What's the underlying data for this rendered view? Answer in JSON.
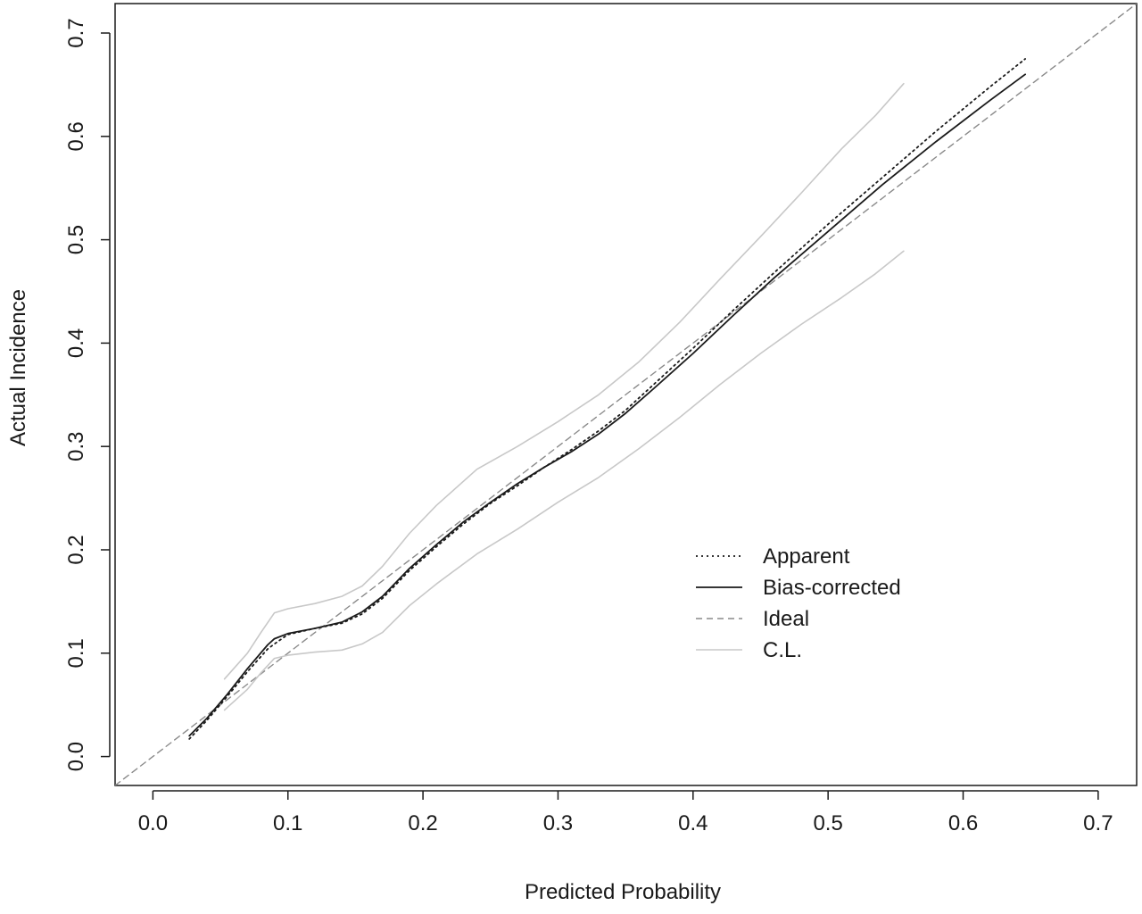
{
  "chart_data": {
    "type": "line",
    "title": "",
    "xlabel": "Predicted Probability",
    "ylabel": "Actual Incidence",
    "xlim": [
      -0.028,
      0.7285
    ],
    "ylim": [
      -0.028,
      0.7285
    ],
    "x_ticks": [
      "0.0",
      "0.1",
      "0.2",
      "0.3",
      "0.4",
      "0.5",
      "0.6",
      "0.7"
    ],
    "y_ticks": [
      "0.0",
      "0.1",
      "0.2",
      "0.3",
      "0.4",
      "0.5",
      "0.6",
      "0.7"
    ],
    "grid": false,
    "legend_position": "center-right",
    "series": [
      {
        "name": "Apparent",
        "style": "dotted",
        "color": "#1a1a1a",
        "points": [
          [
            0.027,
            0.017
          ],
          [
            0.04,
            0.035
          ],
          [
            0.055,
            0.058
          ],
          [
            0.07,
            0.082
          ],
          [
            0.085,
            0.104
          ],
          [
            0.09,
            0.109
          ],
          [
            0.1,
            0.118
          ],
          [
            0.12,
            0.124
          ],
          [
            0.14,
            0.129
          ],
          [
            0.155,
            0.138
          ],
          [
            0.17,
            0.153
          ],
          [
            0.19,
            0.18
          ],
          [
            0.21,
            0.203
          ],
          [
            0.23,
            0.225
          ],
          [
            0.25,
            0.245
          ],
          [
            0.27,
            0.262
          ],
          [
            0.29,
            0.28
          ],
          [
            0.31,
            0.297
          ],
          [
            0.33,
            0.315
          ],
          [
            0.35,
            0.335
          ],
          [
            0.37,
            0.359
          ],
          [
            0.4,
            0.395
          ],
          [
            0.43,
            0.432
          ],
          [
            0.46,
            0.468
          ],
          [
            0.5,
            0.515
          ],
          [
            0.54,
            0.56
          ],
          [
            0.58,
            0.605
          ],
          [
            0.62,
            0.648
          ],
          [
            0.646,
            0.675
          ]
        ]
      },
      {
        "name": "Bias-corrected",
        "style": "solid",
        "color": "#1a1a1a",
        "points": [
          [
            0.027,
            0.02
          ],
          [
            0.04,
            0.037
          ],
          [
            0.055,
            0.06
          ],
          [
            0.07,
            0.085
          ],
          [
            0.085,
            0.108
          ],
          [
            0.09,
            0.114
          ],
          [
            0.1,
            0.119
          ],
          [
            0.12,
            0.124
          ],
          [
            0.14,
            0.13
          ],
          [
            0.155,
            0.14
          ],
          [
            0.17,
            0.155
          ],
          [
            0.19,
            0.182
          ],
          [
            0.21,
            0.205
          ],
          [
            0.23,
            0.227
          ],
          [
            0.25,
            0.246
          ],
          [
            0.27,
            0.264
          ],
          [
            0.29,
            0.28
          ],
          [
            0.31,
            0.295
          ],
          [
            0.33,
            0.312
          ],
          [
            0.35,
            0.332
          ],
          [
            0.37,
            0.355
          ],
          [
            0.4,
            0.39
          ],
          [
            0.43,
            0.427
          ],
          [
            0.46,
            0.463
          ],
          [
            0.5,
            0.508
          ],
          [
            0.54,
            0.553
          ],
          [
            0.58,
            0.595
          ],
          [
            0.62,
            0.635
          ],
          [
            0.646,
            0.66
          ]
        ]
      },
      {
        "name": "Ideal",
        "style": "dashed",
        "color": "#8a8a8a",
        "points": [
          [
            -0.028,
            -0.028
          ],
          [
            0.7285,
            0.7285
          ]
        ]
      },
      {
        "name": "C.L.",
        "style": "solid",
        "color": "#c8c8c8",
        "upper": [
          [
            0.053,
            0.075
          ],
          [
            0.07,
            0.1
          ],
          [
            0.08,
            0.12
          ],
          [
            0.09,
            0.139
          ],
          [
            0.1,
            0.143
          ],
          [
            0.12,
            0.148
          ],
          [
            0.14,
            0.155
          ],
          [
            0.155,
            0.165
          ],
          [
            0.17,
            0.184
          ],
          [
            0.19,
            0.216
          ],
          [
            0.21,
            0.243
          ],
          [
            0.24,
            0.278
          ],
          [
            0.27,
            0.3
          ],
          [
            0.3,
            0.324
          ],
          [
            0.33,
            0.35
          ],
          [
            0.36,
            0.382
          ],
          [
            0.39,
            0.42
          ],
          [
            0.42,
            0.462
          ],
          [
            0.45,
            0.503
          ],
          [
            0.48,
            0.545
          ],
          [
            0.51,
            0.588
          ],
          [
            0.535,
            0.62
          ],
          [
            0.556,
            0.651
          ]
        ],
        "lower": [
          [
            0.053,
            0.045
          ],
          [
            0.07,
            0.065
          ],
          [
            0.08,
            0.081
          ],
          [
            0.09,
            0.095
          ],
          [
            0.1,
            0.098
          ],
          [
            0.12,
            0.101
          ],
          [
            0.14,
            0.103
          ],
          [
            0.155,
            0.109
          ],
          [
            0.17,
            0.12
          ],
          [
            0.19,
            0.146
          ],
          [
            0.21,
            0.167
          ],
          [
            0.24,
            0.196
          ],
          [
            0.27,
            0.22
          ],
          [
            0.3,
            0.246
          ],
          [
            0.33,
            0.27
          ],
          [
            0.36,
            0.298
          ],
          [
            0.39,
            0.328
          ],
          [
            0.42,
            0.36
          ],
          [
            0.45,
            0.39
          ],
          [
            0.48,
            0.418
          ],
          [
            0.51,
            0.444
          ],
          [
            0.535,
            0.467
          ],
          [
            0.556,
            0.489
          ]
        ]
      }
    ],
    "legend": {
      "items": [
        {
          "label": "Apparent",
          "style": "dotted",
          "color": "#1a1a1a"
        },
        {
          "label": "Bias-corrected",
          "style": "solid",
          "color": "#1a1a1a"
        },
        {
          "label": "Ideal",
          "style": "dashed",
          "color": "#8a8a8a"
        },
        {
          "label": "C.L.",
          "style": "solid",
          "color": "#c8c8c8"
        }
      ]
    }
  }
}
